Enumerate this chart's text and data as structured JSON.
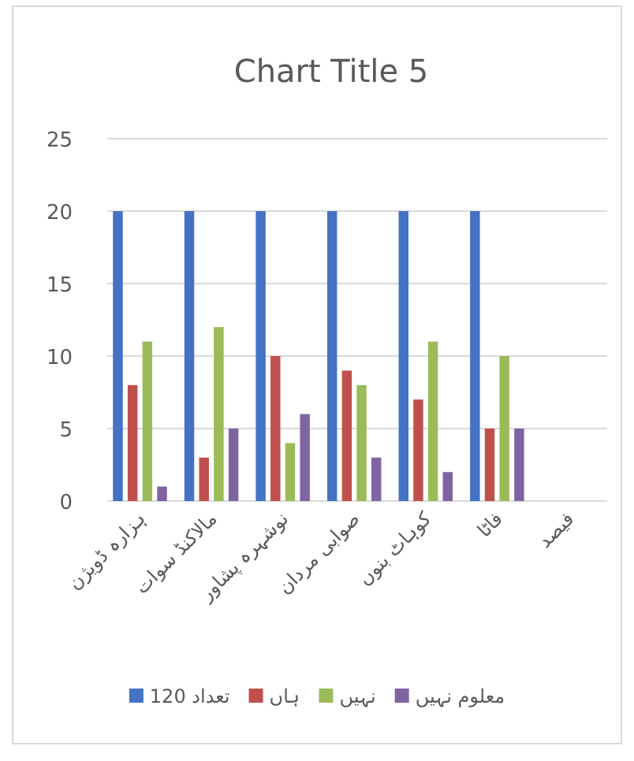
{
  "chart_data": {
    "type": "bar",
    "title": "Chart Title 5",
    "categories": [
      "ہزارہ ڈویژن",
      "مالاکنڈ سوات",
      "نوشہرہ پشاور",
      "صوابی مردان",
      "کوہاٹ بنوں",
      "فاٹا",
      "فیصد"
    ],
    "series": [
      {
        "name": "تعداد 120",
        "color": "#4472c4",
        "values": [
          20,
          20,
          20,
          20,
          20,
          20,
          null
        ]
      },
      {
        "name": "ہاں",
        "color": "#c0504d",
        "values": [
          8,
          3,
          10,
          9,
          7,
          5,
          null
        ]
      },
      {
        "name": "نہیں",
        "color": "#9bbb59",
        "values": [
          11,
          12,
          4,
          8,
          11,
          10,
          null
        ]
      },
      {
        "name": "معلوم نہیں",
        "color": "#8064a2",
        "values": [
          1,
          5,
          6,
          3,
          2,
          5,
          null
        ]
      }
    ],
    "ylim": [
      0,
      25
    ],
    "yticks": [
      0,
      5,
      10,
      15,
      20,
      25
    ],
    "grid": "y",
    "legend": "bottom"
  }
}
